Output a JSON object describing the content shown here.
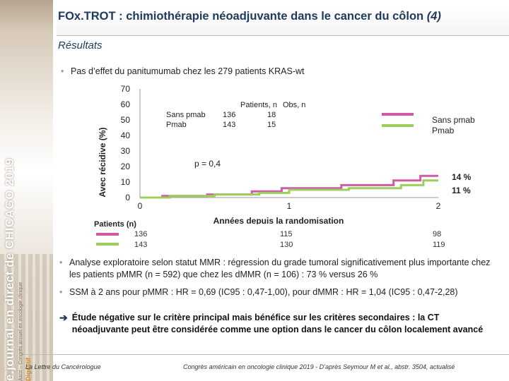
{
  "sidebar": {
    "brand": "e.journal en direct de CHICAGO 2019",
    "sub": "Asco – Congrès annuel en oncologie clinique",
    "digest": "Digestif"
  },
  "header": {
    "title": "FOx.TROT : chimiothérapie néoadjuvante dans le cancer du côlon",
    "page": "(4)"
  },
  "subtitle": "Résultats",
  "bullet1": "Pas d’effet du panitumumab chez les 279 patients KRAS-wt",
  "colors": {
    "sans_pmab": "#d05aa8",
    "pmab": "#9ccf5a",
    "title": "#1f3a5c"
  },
  "chart_data": {
    "type": "line",
    "ylabel": "Avec récidive (%)",
    "xlabel": "Années depuis la randomisation",
    "ylim": [
      0,
      70
    ],
    "xlim": [
      0,
      2
    ],
    "yticks": [
      "0",
      "10",
      "20",
      "30",
      "40",
      "50",
      "60",
      "70"
    ],
    "xticks": [
      "0",
      "1",
      "2"
    ],
    "table_header": {
      "col1": "Patients, n",
      "col2": "Obs, n"
    },
    "table_rows": [
      {
        "name": "Sans pmab",
        "n": "136",
        "obs": "18"
      },
      {
        "name": "Pmab",
        "n": "143",
        "obs": "15"
      }
    ],
    "p_value": "p = 0,4",
    "end_labels": [
      "14 %",
      "11 %"
    ],
    "legend": [
      "Sans pmab",
      "Pmab"
    ],
    "series": [
      {
        "name": "Sans pmab",
        "color": "#d05aa8",
        "points": [
          [
            0,
            0
          ],
          [
            0.15,
            0
          ],
          [
            0.15,
            1
          ],
          [
            0.45,
            1
          ],
          [
            0.45,
            2
          ],
          [
            0.75,
            2
          ],
          [
            0.75,
            4
          ],
          [
            0.95,
            4
          ],
          [
            0.95,
            6
          ],
          [
            1.35,
            6
          ],
          [
            1.35,
            8
          ],
          [
            1.7,
            8
          ],
          [
            1.7,
            11
          ],
          [
            1.88,
            11
          ],
          [
            1.88,
            14
          ],
          [
            2,
            14
          ]
        ]
      },
      {
        "name": "Pmab",
        "color": "#9ccf5a",
        "points": [
          [
            0,
            0
          ],
          [
            0.2,
            0
          ],
          [
            0.2,
            1
          ],
          [
            0.5,
            1
          ],
          [
            0.5,
            2
          ],
          [
            0.8,
            2
          ],
          [
            0.8,
            3
          ],
          [
            1.0,
            3
          ],
          [
            1.0,
            5
          ],
          [
            1.4,
            5
          ],
          [
            1.4,
            6
          ],
          [
            1.75,
            6
          ],
          [
            1.75,
            8
          ],
          [
            1.9,
            8
          ],
          [
            1.9,
            11
          ],
          [
            2,
            11
          ]
        ]
      }
    ]
  },
  "patients": {
    "heading": "Patients (n)",
    "rows": [
      {
        "t0": "136",
        "t1": "115",
        "t2": "98"
      },
      {
        "t0": "143",
        "t1": "130",
        "t2": "119"
      }
    ]
  },
  "bullet2": "Analyse exploratoire selon statut MMR : régression du grade tumoral significativement plus importante chez les patients pMMR (n = 592) que chez les dMMR (n = 106) : 73 % versus 26 %",
  "bullet3": "SSM à 2 ans pour pMMR : HR = 0,69 (IC95 : 0,47-1,00), pour dMMR : HR = 1,04 (IC95 : 0,47-2,28)",
  "conclusion": "Étude négative sur le critère principal mais bénéfice sur les critères secondaires : la CT néoadjuvante peut être considérée comme une option dans le cancer du côlon localement avancé",
  "footer": {
    "left": "La Lettre du Cancérologue",
    "right": "Congrès américain en oncologie clinique 2019 - D’après Seymour M et al., abstr. 3504, actualisé"
  }
}
